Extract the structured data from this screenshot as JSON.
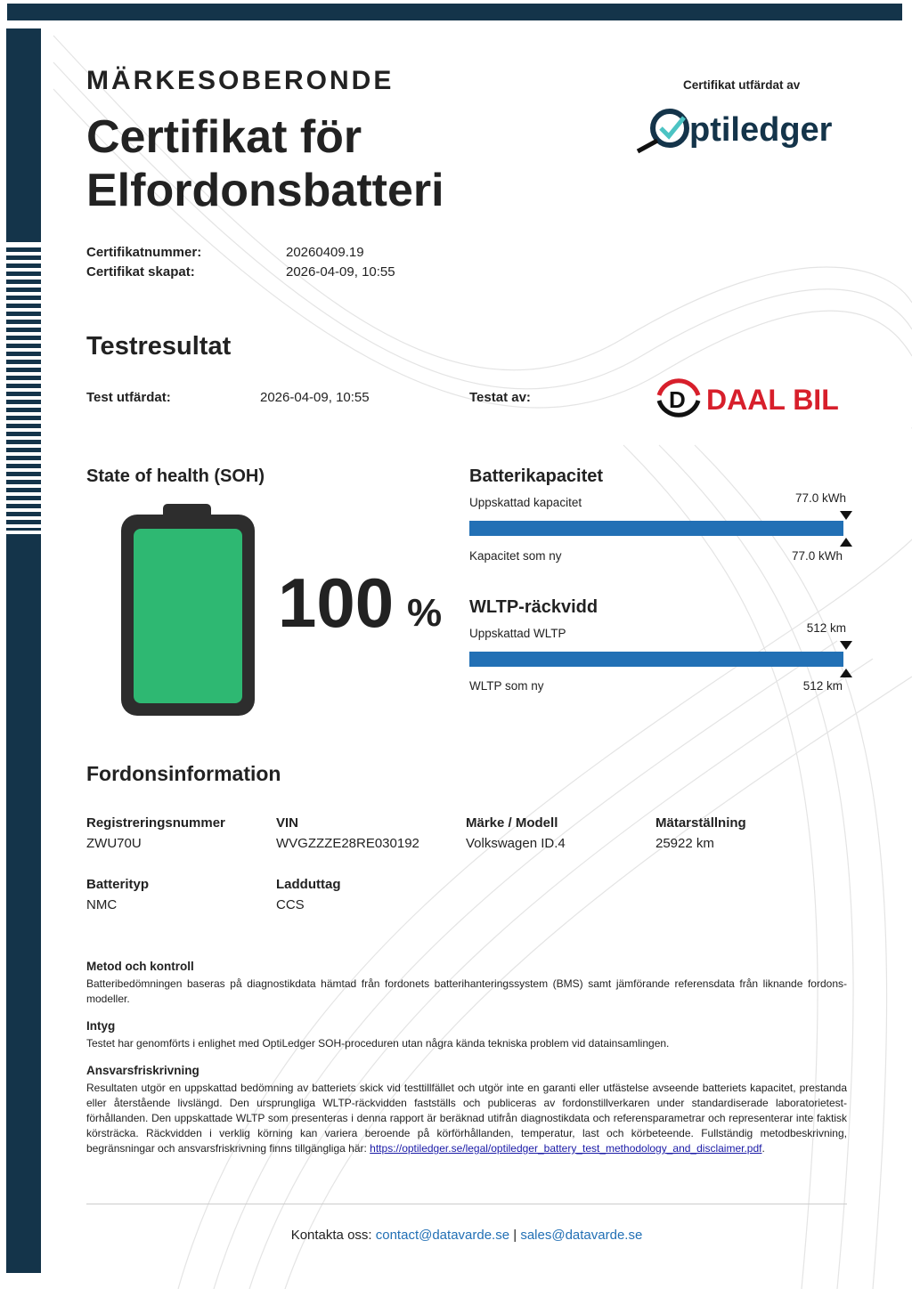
{
  "header": {
    "kicker": "MÄRKESOBERONDE",
    "title_line1": "Certifikat för",
    "title_line2": "Elfordonsbatteri",
    "issued_by_label": "Certifikat utfärdat av",
    "issuer_logo": "Optiledger"
  },
  "certificate": {
    "number_label": "Certifikatnummer:",
    "number": "20260409.19",
    "created_label": "Certifikat skapat:",
    "created": "2026-04-09, 10:55"
  },
  "test": {
    "title": "Testresultat",
    "issued_label": "Test utfärdat:",
    "issued": "2026-04-09, 10:55",
    "tested_by_label": "Testat av:",
    "tester_logo": "DAAL BIL",
    "tester_logo_color": "#d71f2b"
  },
  "soh": {
    "title": "State of health (SOH)",
    "value": "100",
    "unit": "%",
    "percent": 100,
    "battery_color": "#2eb872"
  },
  "capacity": {
    "title": "Batterikapacitet",
    "estimated_label": "Uppskattad kapacitet",
    "estimated": "77.0 kWh",
    "new_label": "Kapacitet som ny",
    "new": "77.0 kWh",
    "fill_percent": 100
  },
  "wltp": {
    "title": "WLTP-räckvidd",
    "estimated_label": "Uppskattad WLTP",
    "estimated": "512 km",
    "new_label": "WLTP som ny",
    "new": "512 km",
    "fill_percent": 100
  },
  "vehicle": {
    "title": "Fordonsinformation",
    "fields": [
      {
        "label": "Registreringsnummer",
        "value": "ZWU70U"
      },
      {
        "label": "VIN",
        "value": "WVGZZZE28RE030192"
      },
      {
        "label": "Märke / Modell",
        "value": "Volkswagen ID.4"
      },
      {
        "label": "Mätarställning",
        "value": "25922 km"
      },
      {
        "label": "Batterityp",
        "value": "NMC"
      },
      {
        "label": "Ladduttag",
        "value": "CCS"
      }
    ]
  },
  "notes": {
    "method_title": "Metod och kontroll",
    "method_text": "Batteribedömningen baseras på diagnostikdata hämtad från fordonets batterihanteringssystem (BMS) samt jämförande referensdata från liknande fordons-modeller.",
    "attest_title": "Intyg",
    "attest_text": "Testet har genomförts i enlighet med OptiLedger SOH-proceduren utan några kända tekniska problem vid datainsamlingen.",
    "disclaimer_title": "Ansvarsfriskrivning",
    "disclaimer_text": "Resultaten utgör en uppskattad bedömning av batteriets skick vid testtillfället och utgör inte en garanti eller utfästelse avseende batteriets kapacitet, prestanda eller återstående livslängd. Den ursprungliga WLTP-räckvidden fastställs och publiceras av fordonstillverkaren under standardiserade laboratorietest-förhållanden. Den uppskattade WLTP som presenteras i denna rapport är beräknad utifrån diagnostikdata och referensparametrar och representerar inte faktisk körsträcka. Räckvidden i verklig körning kan variera beroende på körförhållanden, temperatur, last och körbeteende. Fullständig metodbeskrivning, begränsningar och ansvarsfriskrivning finns tillgängliga här: ",
    "disclaimer_link": "https://optiledger.se/legal/optiledger_battery_test_methodology_and_disclaimer.pdf",
    "disclaimer_end": "."
  },
  "footer": {
    "label": "Kontakta oss:",
    "email1": "contact@datavarde.se",
    "separator": "|",
    "email2": "sales@datavarde.se"
  }
}
